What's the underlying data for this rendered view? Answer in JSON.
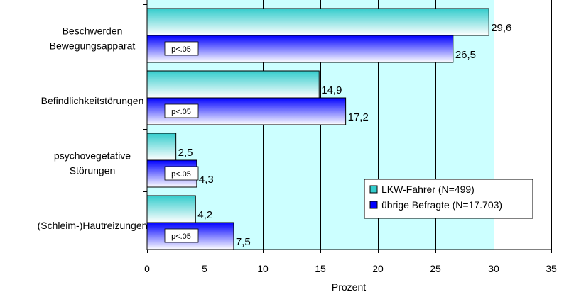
{
  "chart_data": {
    "type": "bar",
    "orientation": "horizontal",
    "categories": [
      [
        "Beschwerden",
        "Bewegungsapparat"
      ],
      [
        "Befindlichkeitstörungen"
      ],
      [
        "psychovegetative",
        "Störungen"
      ],
      [
        "(Schleim-)Hautreizungen"
      ]
    ],
    "series": [
      {
        "name": "LKW-Fahrer (N=499)",
        "values": [
          29.6,
          14.9,
          2.5,
          4.2
        ],
        "value_labels": [
          "29,6",
          "14,9",
          "2,5",
          "4,2"
        ]
      },
      {
        "name": "übrige Befragte (N=17.703)",
        "values": [
          26.5,
          17.2,
          4.3,
          7.5
        ],
        "value_labels": [
          "26,5",
          "17,2",
          "4,3",
          "7,5"
        ]
      }
    ],
    "annotations": [
      "p<.05",
      "p<.05",
      "p<.05",
      "p<.05"
    ],
    "xlabel": "Prozent",
    "xlim": [
      0,
      35
    ],
    "xticks": [
      0,
      5,
      10,
      15,
      20,
      25,
      30,
      35
    ],
    "grid": true,
    "plot_background": "#ccffff",
    "colors": {
      "series_1_edge": "#33cccc",
      "series_2_edge": "#0000ff"
    },
    "legend_position": "right"
  }
}
